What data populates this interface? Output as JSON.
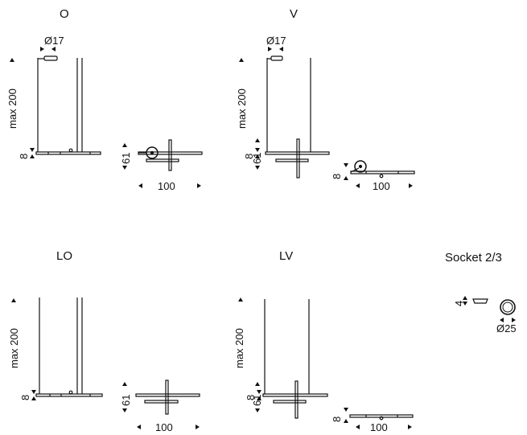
{
  "variants": {
    "O": {
      "title": "O",
      "dia": "Ø17",
      "height": "max 200",
      "thick": "8",
      "depth": "61",
      "width": "100"
    },
    "V": {
      "title": "V",
      "dia": "Ø17",
      "height": "max 200",
      "thick": "8",
      "depth": "61",
      "width": "100"
    },
    "LO": {
      "title": "LO",
      "height": "max 200",
      "thick": "8",
      "depth": "61",
      "width": "100"
    },
    "LV": {
      "title": "LV",
      "height": "max 200",
      "thick": "8",
      "depth": "61",
      "width": "100"
    }
  },
  "socket": {
    "title": "Socket 2/3",
    "height": "4",
    "dia": "Ø25"
  }
}
